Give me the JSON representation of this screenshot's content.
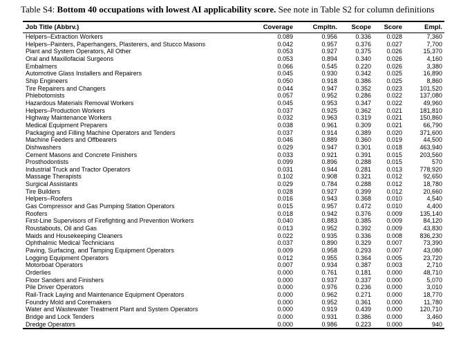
{
  "caption": {
    "label": "Table S4:",
    "title_bold": "Bottom 40 occupations with lowest AI applicability score.",
    "note": "See note in Table S2 for column definitions"
  },
  "colors": {
    "text": "#000000",
    "background": "#ffffff"
  },
  "table": {
    "columns": [
      "Job Title (Abbrv.)",
      "Coverage",
      "Cmpltn.",
      "Scope",
      "Score",
      "Empl."
    ],
    "rows": [
      [
        "Helpers–Extraction Workers",
        "0.089",
        "0.956",
        "0.336",
        "0.028",
        "7,360"
      ],
      [
        "Helpers–Painters, Paperhangers, Plasterers, and Stucco Masons",
        "0.042",
        "0.957",
        "0.376",
        "0.027",
        "7,700"
      ],
      [
        "Plant and System Operators, All Other",
        "0.053",
        "0.927",
        "0.375",
        "0.026",
        "15,370"
      ],
      [
        "Oral and Maxillofacial Surgeons",
        "0.053",
        "0.894",
        "0.340",
        "0.026",
        "4,160"
      ],
      [
        "Embalmers",
        "0.066",
        "0.545",
        "0.220",
        "0.026",
        "3,380"
      ],
      [
        "Automotive Glass Installers and Repairers",
        "0.045",
        "0.930",
        "0.342",
        "0.025",
        "16,890"
      ],
      [
        "Ship Engineers",
        "0.050",
        "0.918",
        "0.386",
        "0.025",
        "8,860"
      ],
      [
        "Tire Repairers and Changers",
        "0.044",
        "0.947",
        "0.352",
        "0.023",
        "101,520"
      ],
      [
        "Phlebotomists",
        "0.057",
        "0.952",
        "0.286",
        "0.022",
        "137,080"
      ],
      [
        "Hazardous Materials Removal Workers",
        "0.045",
        "0.953",
        "0.347",
        "0.022",
        "49,960"
      ],
      [
        "Helpers–Production Workers",
        "0.037",
        "0.925",
        "0.362",
        "0.021",
        "181,810"
      ],
      [
        "Highway Maintenance Workers",
        "0.032",
        "0.963",
        "0.319",
        "0.021",
        "150,860"
      ],
      [
        "Medical Equipment Preparers",
        "0.038",
        "0.961",
        "0.309",
        "0.021",
        "66,790"
      ],
      [
        "Packaging and Filling Machine Operators and Tenders",
        "0.037",
        "0.914",
        "0.389",
        "0.020",
        "371,600"
      ],
      [
        "Machine Feeders and Offbearers",
        "0.046",
        "0.889",
        "0.360",
        "0.019",
        "44,500"
      ],
      [
        "Dishwashers",
        "0.029",
        "0.947",
        "0.301",
        "0.018",
        "463,940"
      ],
      [
        "Cement Masons and Concrete Finishers",
        "0.033",
        "0.921",
        "0.391",
        "0.015",
        "203,560"
      ],
      [
        "Prosthodontists",
        "0.099",
        "0.896",
        "0.288",
        "0.015",
        "570"
      ],
      [
        "Industrial Truck and Tractor Operators",
        "0.031",
        "0.944",
        "0.281",
        "0.013",
        "778,920"
      ],
      [
        "Massage Therapists",
        "0.102",
        "0.908",
        "0.321",
        "0.012",
        "92,650"
      ],
      [
        "Surgical Assistants",
        "0.029",
        "0.784",
        "0.288",
        "0.012",
        "18,780"
      ],
      [
        "Tire Builders",
        "0.028",
        "0.927",
        "0.399",
        "0.012",
        "20,660"
      ],
      [
        "Helpers–Roofers",
        "0.016",
        "0.943",
        "0.368",
        "0.010",
        "4,540"
      ],
      [
        "Gas Compressor and Gas Pumping Station Operators",
        "0.015",
        "0.957",
        "0.472",
        "0.010",
        "4,400"
      ],
      [
        "Roofers",
        "0.018",
        "0.942",
        "0.376",
        "0.009",
        "135,140"
      ],
      [
        "First-Line Supervisors of Firefighting and Prevention Workers",
        "0.040",
        "0.883",
        "0.385",
        "0.009",
        "84,120"
      ],
      [
        "Roustabouts, Oil and Gas",
        "0.013",
        "0.952",
        "0.392",
        "0.009",
        "43,830"
      ],
      [
        "Maids and Housekeeping Cleaners",
        "0.022",
        "0.935",
        "0.336",
        "0.008",
        "836,230"
      ],
      [
        "Ophthalmic Medical Technicians",
        "0.037",
        "0.890",
        "0.329",
        "0.007",
        "73,390"
      ],
      [
        "Paving, Surfacing, and Tamping Equipment Operators",
        "0.009",
        "0.958",
        "0.293",
        "0.007",
        "43,080"
      ],
      [
        "Logging Equipment Operators",
        "0.012",
        "0.955",
        "0.364",
        "0.005",
        "23,720"
      ],
      [
        "Motorboat Operators",
        "0.007",
        "0.934",
        "0.387",
        "0.003",
        "2,710"
      ],
      [
        "Orderlies",
        "0.000",
        "0.761",
        "0.181",
        "0.000",
        "48,710"
      ],
      [
        "Floor Sanders and Finishers",
        "0.000",
        "0.937",
        "0.337",
        "0.000",
        "5,070"
      ],
      [
        "Pile Driver Operators",
        "0.000",
        "0.976",
        "0.236",
        "0.000",
        "3,010"
      ],
      [
        "Rail-Track Laying and Maintenance Equipment Operators",
        "0.000",
        "0.962",
        "0.271",
        "0.000",
        "18,770"
      ],
      [
        "Foundry Mold and Coremakers",
        "0.000",
        "0.952",
        "0.361",
        "0.000",
        "11,780"
      ],
      [
        "Water and Wastewater Treatment Plant and System Operators",
        "0.000",
        "0.919",
        "0.439",
        "0.000",
        "120,710"
      ],
      [
        "Bridge and Lock Tenders",
        "0.000",
        "0.931",
        "0.386",
        "0.000",
        "3,460"
      ],
      [
        "Dredge Operators",
        "0.000",
        "0.986",
        "0.223",
        "0.000",
        "940"
      ]
    ]
  }
}
